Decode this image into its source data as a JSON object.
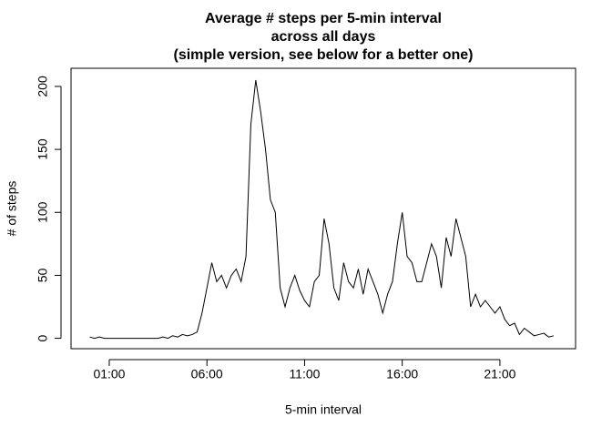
{
  "chart_data": {
    "type": "line",
    "title": [
      "Average # steps per 5-min interval",
      "across all days",
      "(simple version, see below for a better one)"
    ],
    "x_label": "5-min interval",
    "y_label": "# of steps",
    "x": [
      0,
      15,
      30,
      45,
      60,
      75,
      90,
      105,
      120,
      135,
      150,
      165,
      180,
      195,
      210,
      225,
      240,
      255,
      270,
      285,
      300,
      315,
      330,
      345,
      360,
      375,
      390,
      405,
      420,
      435,
      450,
      465,
      480,
      495,
      510,
      525,
      540,
      555,
      570,
      585,
      600,
      615,
      630,
      645,
      660,
      675,
      690,
      705,
      720,
      735,
      750,
      765,
      780,
      795,
      810,
      825,
      840,
      855,
      870,
      885,
      900,
      915,
      930,
      945,
      960,
      975,
      990,
      1005,
      1020,
      1035,
      1050,
      1065,
      1080,
      1095,
      1110,
      1125,
      1140,
      1155,
      1170,
      1185,
      1200,
      1215,
      1230,
      1245,
      1260,
      1275,
      1290,
      1305,
      1320,
      1335,
      1350,
      1365,
      1380,
      1395,
      1410,
      1425
    ],
    "series": [
      {
        "color": "#000000",
        "values": [
          1,
          0,
          1,
          0,
          0,
          0,
          0,
          0,
          0,
          0,
          0,
          0,
          0,
          0,
          0,
          1,
          0,
          2,
          1,
          3,
          2,
          3,
          5,
          20,
          40,
          60,
          45,
          50,
          40,
          50,
          55,
          45,
          65,
          170,
          205,
          180,
          150,
          110,
          100,
          40,
          25,
          40,
          50,
          38,
          30,
          25,
          45,
          50,
          95,
          75,
          40,
          30,
          60,
          45,
          40,
          55,
          35,
          55,
          45,
          35,
          20,
          35,
          45,
          75,
          100,
          65,
          60,
          45,
          45,
          60,
          75,
          65,
          40,
          80,
          65,
          95,
          80,
          65,
          25,
          35,
          25,
          30,
          25,
          20,
          25,
          15,
          10,
          12,
          3,
          8,
          5,
          2,
          3,
          4,
          1,
          2
        ]
      }
    ],
    "xlim": [
      -57.4,
      1492.4
    ],
    "xticks": [
      {
        "value": 60,
        "label": "01:00"
      },
      {
        "value": 360,
        "label": "06:00"
      },
      {
        "value": 660,
        "label": "11:00"
      },
      {
        "value": 960,
        "label": "16:00"
      },
      {
        "value": 1260,
        "label": "21:00"
      }
    ],
    "ylim": [
      -8.25,
      214.4
    ],
    "yticks": [
      0,
      50,
      100,
      150,
      200
    ]
  }
}
